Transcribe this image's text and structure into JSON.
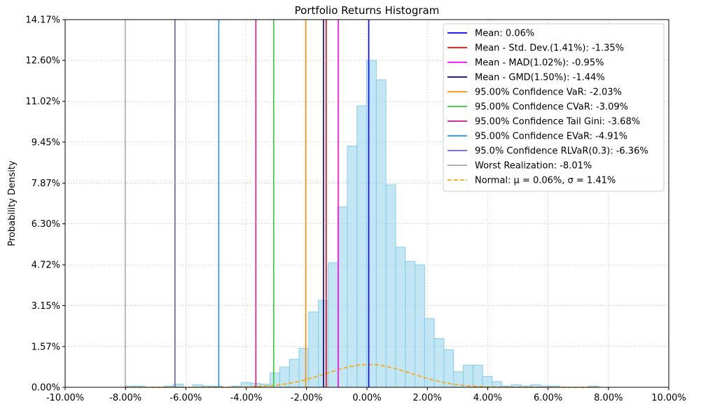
{
  "chart_data": {
    "type": "bar",
    "title": "Portfolio Returns Histogram",
    "xlabel": "",
    "ylabel": "Probability Density",
    "xlim": [
      -10,
      10
    ],
    "ylim": [
      0,
      14.17
    ],
    "x_ticks": [
      -10,
      -8,
      -6,
      -4,
      -2,
      0,
      2,
      4,
      6,
      8,
      10
    ],
    "x_tick_labels": [
      "-10.00%",
      "-8.00%",
      "-6.00%",
      "-4.00%",
      "-2.00%",
      "0.00%",
      "2.00%",
      "4.00%",
      "6.00%",
      "8.00%",
      "10.00%"
    ],
    "y_ticks": [
      0,
      1.57,
      3.15,
      4.72,
      6.3,
      7.87,
      9.45,
      11.02,
      12.6,
      14.17
    ],
    "y_tick_labels": [
      "0.00%",
      "1.57%",
      "3.15%",
      "4.72%",
      "6.30%",
      "7.87%",
      "9.45%",
      "11.02%",
      "12.60%",
      "14.17%"
    ],
    "grid": true,
    "legend_position": "top-right",
    "histogram": {
      "color": "#87CEEB",
      "edge_color": "#87CEEB",
      "bins": [
        {
          "x0": -8.01,
          "x1": -7.69,
          "y": 0.05
        },
        {
          "x0": -7.69,
          "x1": -7.37,
          "y": 0.05
        },
        {
          "x0": -6.73,
          "x1": -6.41,
          "y": 0.05
        },
        {
          "x0": -6.41,
          "x1": -6.09,
          "y": 0.12
        },
        {
          "x0": -5.77,
          "x1": -5.45,
          "y": 0.1
        },
        {
          "x0": -5.45,
          "x1": -5.13,
          "y": 0.05
        },
        {
          "x0": -5.13,
          "x1": -4.81,
          "y": 0.05
        },
        {
          "x0": -4.49,
          "x1": -4.17,
          "y": 0.05
        },
        {
          "x0": -4.17,
          "x1": -3.85,
          "y": 0.18
        },
        {
          "x0": -3.85,
          "x1": -3.53,
          "y": 0.15
        },
        {
          "x0": -3.53,
          "x1": -3.21,
          "y": 0.12
        },
        {
          "x0": -3.21,
          "x1": -2.89,
          "y": 0.55
        },
        {
          "x0": -2.89,
          "x1": -2.57,
          "y": 0.78
        },
        {
          "x0": -2.57,
          "x1": -2.25,
          "y": 1.08
        },
        {
          "x0": -2.25,
          "x1": -1.93,
          "y": 1.5
        },
        {
          "x0": -1.93,
          "x1": -1.61,
          "y": 2.9
        },
        {
          "x0": -1.61,
          "x1": -1.29,
          "y": 3.35
        },
        {
          "x0": -1.29,
          "x1": -0.97,
          "y": 4.8
        },
        {
          "x0": -0.97,
          "x1": -0.65,
          "y": 6.95
        },
        {
          "x0": -0.65,
          "x1": -0.33,
          "y": 9.3
        },
        {
          "x0": -0.33,
          "x1": -0.01,
          "y": 10.85
        },
        {
          "x0": -0.01,
          "x1": 0.31,
          "y": 12.6
        },
        {
          "x0": 0.31,
          "x1": 0.63,
          "y": 11.85
        },
        {
          "x0": 0.63,
          "x1": 0.95,
          "y": 7.8
        },
        {
          "x0": 0.95,
          "x1": 1.27,
          "y": 5.4
        },
        {
          "x0": 1.27,
          "x1": 1.59,
          "y": 4.85
        },
        {
          "x0": 1.59,
          "x1": 1.91,
          "y": 4.72
        },
        {
          "x0": 1.91,
          "x1": 2.23,
          "y": 2.65
        },
        {
          "x0": 2.23,
          "x1": 2.55,
          "y": 1.88
        },
        {
          "x0": 2.55,
          "x1": 2.87,
          "y": 1.45
        },
        {
          "x0": 2.87,
          "x1": 3.19,
          "y": 0.6
        },
        {
          "x0": 3.19,
          "x1": 3.51,
          "y": 0.85
        },
        {
          "x0": 3.51,
          "x1": 3.83,
          "y": 0.85
        },
        {
          "x0": 3.83,
          "x1": 4.15,
          "y": 0.42
        },
        {
          "x0": 4.15,
          "x1": 4.47,
          "y": 0.22
        },
        {
          "x0": 4.47,
          "x1": 4.79,
          "y": 0.05
        },
        {
          "x0": 4.79,
          "x1": 5.11,
          "y": 0.1
        },
        {
          "x0": 5.11,
          "x1": 5.43,
          "y": 0.05
        },
        {
          "x0": 5.43,
          "x1": 5.75,
          "y": 0.1
        },
        {
          "x0": 5.75,
          "x1": 6.07,
          "y": 0.05
        },
        {
          "x0": 6.07,
          "x1": 6.39,
          "y": 0.05
        },
        {
          "x0": 7.35,
          "x1": 7.67,
          "y": 0.05
        }
      ]
    },
    "normal_curve": {
      "mu": 0.06,
      "sigma": 1.41,
      "color": "#FFA500"
    },
    "series": [
      {
        "name": "Mean: 0.06%",
        "x": 0.06,
        "color": "#0000FF"
      },
      {
        "name": "Mean - Std. Dev.(1.41%): -1.35%",
        "x": -1.35,
        "color": "#FF0000"
      },
      {
        "name": "Mean - MAD(1.02%): -0.95%",
        "x": -0.95,
        "color": "#FF00FF"
      },
      {
        "name": "Mean - GMD(1.50%): -1.44%",
        "x": -1.44,
        "color": "#00008B"
      },
      {
        "name": "95.00% Confidence VaR: -2.03%",
        "x": -2.03,
        "color": "#FF8C00"
      },
      {
        "name": "95.00% Confidence CVaR: -3.09%",
        "x": -3.09,
        "color": "#32CD32"
      },
      {
        "name": "95.00% Confidence Tail Gini: -3.68%",
        "x": -3.68,
        "color": "#C71585"
      },
      {
        "name": "95.00% Confidence EVaR: -4.91%",
        "x": -4.91,
        "color": "#1E90FF"
      },
      {
        "name": "95.0% Confidence RLVaR(0.3): -6.36%",
        "x": -6.36,
        "color": "#6A5ACD"
      },
      {
        "name": "Worst Realization: -8.01%",
        "x": -8.01,
        "color": "#A9A9A9"
      }
    ],
    "legend": [
      {
        "label": "Mean: 0.06%",
        "color": "#0000FF",
        "style": "solid"
      },
      {
        "label": "Mean - Std. Dev.(1.41%): -1.35%",
        "color": "#FF0000",
        "style": "solid"
      },
      {
        "label": "Mean - MAD(1.02%): -0.95%",
        "color": "#FF00FF",
        "style": "solid"
      },
      {
        "label": "Mean - GMD(1.50%): -1.44%",
        "color": "#00008B",
        "style": "solid"
      },
      {
        "label": "95.00% Confidence VaR: -2.03%",
        "color": "#FF8C00",
        "style": "solid"
      },
      {
        "label": "95.00% Confidence CVaR: -3.09%",
        "color": "#32CD32",
        "style": "solid"
      },
      {
        "label": "95.00% Confidence Tail Gini: -3.68%",
        "color": "#C71585",
        "style": "solid"
      },
      {
        "label": "95.00% Confidence EVaR: -4.91%",
        "color": "#1E90FF",
        "style": "solid"
      },
      {
        "label": "95.0% Confidence RLVaR(0.3): -6.36%",
        "color": "#6A5ACD",
        "style": "solid"
      },
      {
        "label": "Worst Realization: -8.01%",
        "color": "#A9A9A9",
        "style": "solid"
      },
      {
        "label": "Normal: μ = 0.06%, σ = 1.41%",
        "color": "#FFA500",
        "style": "dashed"
      }
    ]
  }
}
